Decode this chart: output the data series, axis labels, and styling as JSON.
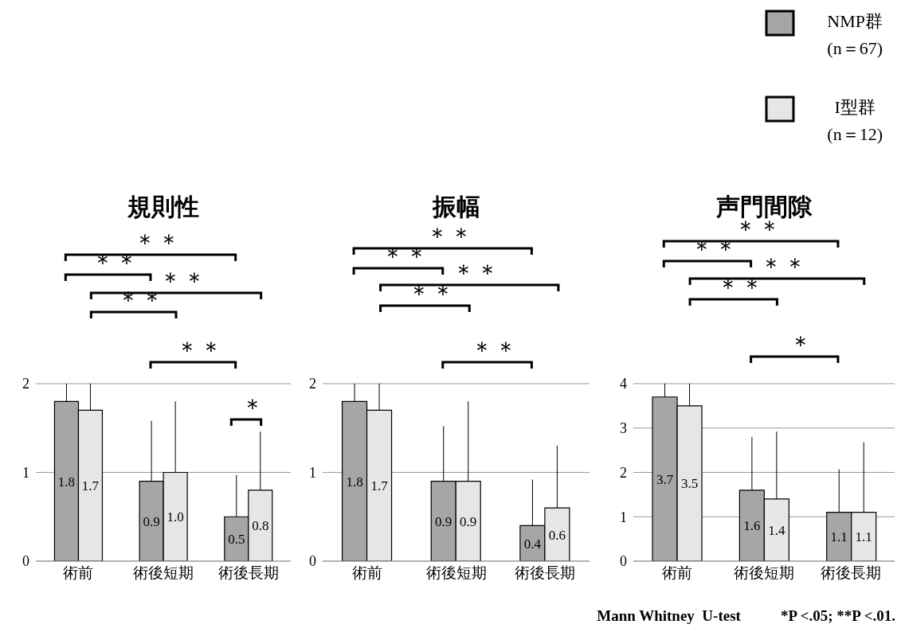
{
  "chart_data": [
    {
      "type": "bar",
      "title": "規則性",
      "categories": [
        "術前",
        "術後短期",
        "術後長期"
      ],
      "ylim": [
        0,
        2
      ],
      "yticks": [
        0,
        1,
        2
      ],
      "grid": "y",
      "series": [
        {
          "color": "#a6a6a6",
          "values": [
            1.8,
            0.9,
            0.5
          ],
          "value_labels": [
            "1.8",
            "0.9",
            "0.5"
          ],
          "errors": [
            [
              1.8,
              2
            ],
            [
              0.9,
              1.58
            ],
            [
              0.5,
              0.97
            ]
          ]
        },
        {
          "color": "#e6e6e6",
          "values": [
            1.7,
            1.0,
            0.8
          ],
          "value_labels": [
            "1.7",
            "1.0",
            "0.8"
          ],
          "errors": [
            [
              1.7,
              2
            ],
            [
              1.0,
              1.8
            ],
            [
              0.8,
              1.46
            ]
          ]
        }
      ],
      "annotations": [
        "＊＊",
        "＊＊",
        "＊＊",
        "＊＊",
        "＊＊",
        "＊"
      ]
    },
    {
      "type": "bar",
      "title": "振幅",
      "categories": [
        "術前",
        "術後短期",
        "術後長期"
      ],
      "ylim": [
        0,
        2
      ],
      "yticks": [
        0,
        1,
        2
      ],
      "grid": "y",
      "series": [
        {
          "color": "#a6a6a6",
          "values": [
            1.8,
            0.9,
            0.4
          ],
          "value_labels": [
            "1.8",
            "0.9",
            "0.4"
          ],
          "errors": [
            [
              1.8,
              2
            ],
            [
              0.9,
              1.52
            ],
            [
              0.4,
              0.92
            ]
          ]
        },
        {
          "color": "#e6e6e6",
          "values": [
            1.7,
            0.9,
            0.6
          ],
          "value_labels": [
            "1.7",
            "0.9",
            "0.6"
          ],
          "errors": [
            [
              1.7,
              2
            ],
            [
              0.9,
              1.8
            ],
            [
              0.6,
              1.3
            ]
          ]
        }
      ],
      "annotations": [
        "＊＊",
        "＊＊",
        "＊＊",
        "＊＊",
        "＊＊"
      ]
    },
    {
      "type": "bar",
      "title": "声門間隙",
      "categories": [
        "術前",
        "術後短期",
        "術後長期"
      ],
      "ylim": [
        0,
        4
      ],
      "yticks": [
        0,
        1,
        2,
        3,
        4
      ],
      "grid": "y",
      "legend": "top right",
      "series": [
        {
          "name": "NMP群 (n＝67)",
          "color": "#a6a6a6",
          "values": [
            3.7,
            1.6,
            1.1
          ],
          "value_labels": [
            "3.7",
            "1.6",
            "1.1"
          ],
          "errors": [
            [
              3.7,
              4
            ],
            [
              1.6,
              2.8
            ],
            [
              1.1,
              2.07
            ]
          ]
        },
        {
          "name": "I型群 (n＝12)",
          "color": "#e6e6e6",
          "values": [
            3.5,
            1.4,
            1.1
          ],
          "value_labels": [
            "3.5",
            "1.4",
            "1.1"
          ],
          "errors": [
            [
              3.5,
              4
            ],
            [
              1.4,
              2.92
            ],
            [
              1.1,
              2.68
            ]
          ]
        }
      ],
      "annotations": [
        "＊＊",
        "＊＊",
        "＊＊",
        "＊＊",
        "＊",
        "Mann Whitney  U-test",
        "*P <.05; **P <.01."
      ]
    }
  ]
}
